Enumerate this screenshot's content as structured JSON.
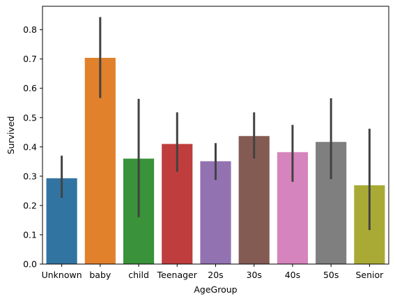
{
  "chart_data": {
    "type": "bar",
    "title": "",
    "xlabel": "AgeGroup",
    "ylabel": "Survived",
    "ylim": [
      0,
      0.88
    ],
    "yticks": [
      0.0,
      0.1,
      0.2,
      0.3,
      0.4,
      0.5,
      0.6,
      0.7,
      0.8
    ],
    "ytick_labels": [
      "0.0",
      "0.1",
      "0.2",
      "0.3",
      "0.4",
      "0.5",
      "0.6",
      "0.7",
      "0.8"
    ],
    "categories": [
      "Unknown",
      "baby",
      "child",
      "Teenager",
      "20s",
      "30s",
      "40s",
      "50s",
      "Senior"
    ],
    "values": [
      0.293,
      0.704,
      0.36,
      0.41,
      0.351,
      0.437,
      0.382,
      0.417,
      0.269
    ],
    "ci_low": [
      0.226,
      0.567,
      0.16,
      0.315,
      0.287,
      0.36,
      0.281,
      0.29,
      0.116
    ],
    "ci_high": [
      0.37,
      0.843,
      0.564,
      0.518,
      0.413,
      0.518,
      0.475,
      0.566,
      0.462
    ],
    "colors": [
      "#3274a1",
      "#e1812c",
      "#3a923a",
      "#c03d3e",
      "#9372b2",
      "#845b53",
      "#d684bd",
      "#7f7f7f",
      "#a9aa35"
    ],
    "error_bar_color": "#424242",
    "grid": false,
    "legend": "none"
  }
}
